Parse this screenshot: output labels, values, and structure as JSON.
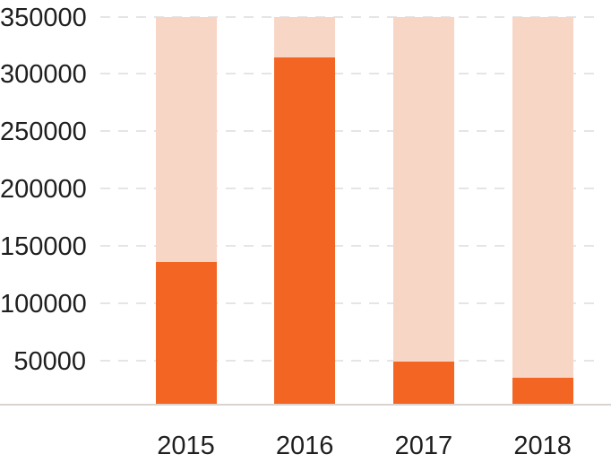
{
  "chart_data": {
    "type": "bar",
    "subtype": "overlay-capacity-bars",
    "title": "",
    "categories": [
      "2015",
      "2016",
      "2017",
      "2018"
    ],
    "series": [
      {
        "name": "value",
        "role": "foreground",
        "color": "#f26522",
        "values": [
          136000,
          314000,
          49000,
          35000
        ]
      },
      {
        "name": "capacity",
        "role": "background",
        "color": "#f8d6c6",
        "values": [
          350000,
          350000,
          350000,
          350000
        ]
      }
    ],
    "xlabel": "",
    "ylabel": "",
    "ylim": [
      0,
      350000
    ],
    "y_ticks": [
      350000,
      300000,
      250000,
      200000,
      150000,
      100000,
      50000
    ],
    "y_tick_step": 50000,
    "grid": "horizontal-dashed",
    "legend_position": "none"
  },
  "colors": {
    "foreground_bar": "#f26522",
    "background_bar": "#f8d6c6",
    "gridline": "#e5e5e5",
    "axis_line": "#d9d4cf",
    "tick_text": "#1f1f1f",
    "background": "#ffffff"
  }
}
